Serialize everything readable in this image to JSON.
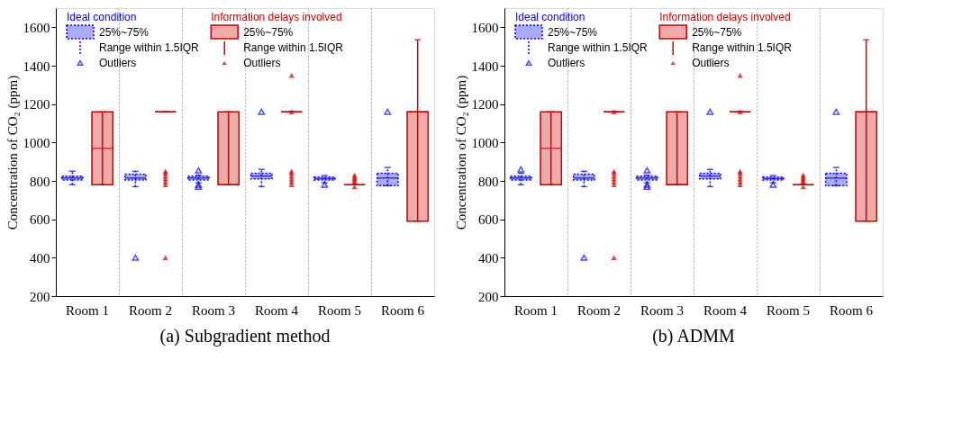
{
  "chart_data": [
    {
      "type": "box",
      "title": "(a) Subgradient method",
      "ylabel": "Concentration of CO₂ (ppm)",
      "categories": [
        "Room 1",
        "Room 2",
        "Room 3",
        "Room 4",
        "Room 5",
        "Room 6"
      ],
      "ylim": [
        200,
        1700
      ],
      "yticks": [
        200,
        400,
        600,
        800,
        1000,
        1200,
        1400,
        1600
      ],
      "grid": "x",
      "legend": "top left",
      "marker": "triangle",
      "annotations": [
        "25%~75%",
        "Range within 1.5IQR",
        "Outliers"
      ],
      "series": [
        {
          "name": "Ideal condition",
          "color": "#0000ff",
          "line_style": "dotted",
          "boxes": [
            {
              "low": 780,
              "q1": 805,
              "median": 815,
              "q3": 825,
              "high": 850
            },
            {
              "low": 770,
              "q1": 805,
              "median": 815,
              "q3": 835,
              "high": 850,
              "outliers": [
                400
              ]
            },
            {
              "low": 790,
              "q1": 805,
              "median": 815,
              "q3": 825,
              "high": 830,
              "outliers": [
                855,
                780,
                770
              ]
            },
            {
              "low": 770,
              "q1": 810,
              "median": 825,
              "q3": 840,
              "high": 860,
              "outliers": [
                1160
              ]
            },
            {
              "low": 790,
              "q1": 805,
              "median": 812,
              "q3": 820,
              "high": 828,
              "outliers": [
                780
              ]
            },
            {
              "low": 775,
              "q1": 775,
              "median": 815,
              "q3": 840,
              "high": 870,
              "outliers": [
                1160
              ]
            }
          ]
        },
        {
          "name": "Information delays involved",
          "color": "#cc0000",
          "line_style": "solid",
          "boxes": [
            {
              "low": 780,
              "q1": 780,
              "median": 970,
              "q3": 1160,
              "high": 1160
            },
            {
              "low": 1160,
              "q1": 1160,
              "median": 1160,
              "q3": 1160,
              "high": 1160,
              "outliers": [
                780,
                795,
                810,
                825,
                840,
                850,
                400
              ]
            },
            {
              "low": 780,
              "q1": 780,
              "median": 780,
              "q3": 1160,
              "high": 1160
            },
            {
              "low": 1160,
              "q1": 1160,
              "median": 1160,
              "q3": 1160,
              "high": 1160,
              "outliers": [
                1350,
                1160,
                780,
                795,
                810,
                825,
                840,
                850
              ]
            },
            {
              "low": 780,
              "q1": 780,
              "median": 780,
              "q3": 780,
              "high": 780,
              "outliers": [
                770,
                790,
                800,
                810,
                820,
                830
              ]
            },
            {
              "low": 590,
              "q1": 590,
              "median": 1160,
              "q3": 1160,
              "high": 1535
            }
          ]
        }
      ]
    },
    {
      "type": "box",
      "title": "(b) ADMM",
      "ylabel": "Concentration of CO₂ (ppm)",
      "categories": [
        "Room 1",
        "Room 2",
        "Room 3",
        "Room 4",
        "Room 5",
        "Room 6"
      ],
      "ylim": [
        200,
        1700
      ],
      "yticks": [
        200,
        400,
        600,
        800,
        1000,
        1200,
        1400,
        1600
      ],
      "grid": "x",
      "legend": "top left",
      "marker": "triangle",
      "annotations": [
        "25%~75%",
        "Range within 1.5IQR",
        "Outliers"
      ],
      "series": [
        {
          "name": "Ideal condition",
          "color": "#0000ff",
          "line_style": "dotted",
          "boxes": [
            {
              "low": 780,
              "q1": 805,
              "median": 815,
              "q3": 825,
              "high": 840,
              "outliers": [
                860
              ]
            },
            {
              "low": 770,
              "q1": 805,
              "median": 815,
              "q3": 835,
              "high": 850,
              "outliers": [
                400
              ]
            },
            {
              "low": 790,
              "q1": 805,
              "median": 815,
              "q3": 825,
              "high": 830,
              "outliers": [
                855,
                780,
                770
              ]
            },
            {
              "low": 770,
              "q1": 810,
              "median": 825,
              "q3": 840,
              "high": 860,
              "outliers": [
                1160
              ]
            },
            {
              "low": 790,
              "q1": 805,
              "median": 812,
              "q3": 820,
              "high": 828,
              "outliers": [
                780
              ]
            },
            {
              "low": 775,
              "q1": 775,
              "median": 815,
              "q3": 840,
              "high": 870,
              "outliers": [
                1160
              ]
            }
          ]
        },
        {
          "name": "Information delays involved",
          "color": "#cc0000",
          "line_style": "solid",
          "boxes": [
            {
              "low": 780,
              "q1": 780,
              "median": 970,
              "q3": 1160,
              "high": 1160
            },
            {
              "low": 1160,
              "q1": 1160,
              "median": 1160,
              "q3": 1160,
              "high": 1160,
              "outliers": [
                1160,
                780,
                795,
                810,
                825,
                840,
                850,
                400
              ]
            },
            {
              "low": 780,
              "q1": 780,
              "median": 780,
              "q3": 1160,
              "high": 1160
            },
            {
              "low": 1160,
              "q1": 1160,
              "median": 1160,
              "q3": 1160,
              "high": 1160,
              "outliers": [
                1350,
                1160,
                780,
                795,
                810,
                825,
                840,
                850
              ]
            },
            {
              "low": 780,
              "q1": 780,
              "median": 780,
              "q3": 780,
              "high": 780,
              "outliers": [
                770,
                790,
                800,
                810,
                820,
                830
              ]
            },
            {
              "low": 590,
              "q1": 590,
              "median": 1160,
              "q3": 1160,
              "high": 1535
            }
          ]
        }
      ]
    }
  ]
}
